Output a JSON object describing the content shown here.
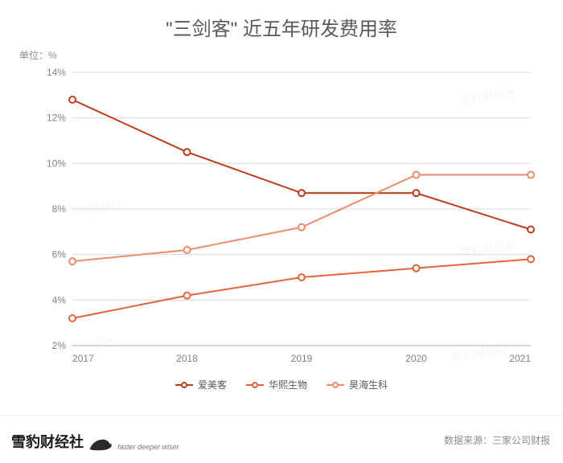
{
  "title": "\"三剑客\" 近五年研发费用率",
  "unit_label": "单位：%",
  "source_label": "数据来源：三家公司财报",
  "brand_cn": "雪豹财经社",
  "brand_en": "faster deeper wiser",
  "chart": {
    "type": "line",
    "ylim": [
      2,
      14
    ],
    "ytick_step": 2,
    "yticks": [
      "2%",
      "4%",
      "6%",
      "8%",
      "10%",
      "12%",
      "14%"
    ],
    "xcategories": [
      "2017",
      "2018",
      "2019",
      "2020",
      "2021"
    ],
    "grid_color": "#d9d9d9",
    "axis_color": "#b0b0b0",
    "background_color": "#ffffff",
    "line_width": 2,
    "marker_radius": 4,
    "marker_fill": "#ffffff",
    "series": [
      {
        "name": "爱美客",
        "color": "#bf3b1b",
        "values": [
          12.8,
          10.5,
          8.7,
          8.7,
          7.1
        ]
      },
      {
        "name": "华熙生物",
        "color": "#e6633c",
        "values": [
          3.2,
          4.2,
          5.0,
          5.4,
          5.8
        ]
      },
      {
        "name": "昊海生科",
        "color": "#f08a6a",
        "values": [
          5.7,
          6.2,
          7.2,
          9.5,
          9.5
        ]
      }
    ]
  }
}
